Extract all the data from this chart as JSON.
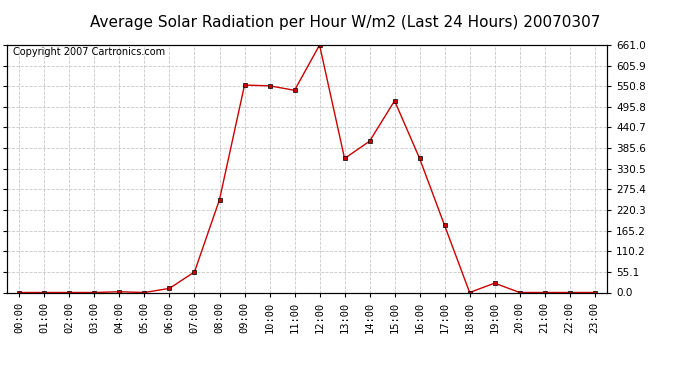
{
  "title": "Average Solar Radiation per Hour W/m2 (Last 24 Hours) 20070307",
  "copyright_text": "Copyright 2007 Cartronics.com",
  "hours": [
    "00:00",
    "01:00",
    "02:00",
    "03:00",
    "04:00",
    "05:00",
    "06:00",
    "07:00",
    "08:00",
    "09:00",
    "10:00",
    "11:00",
    "12:00",
    "13:00",
    "14:00",
    "15:00",
    "16:00",
    "17:00",
    "18:00",
    "19:00",
    "20:00",
    "21:00",
    "22:00",
    "23:00"
  ],
  "values": [
    0.0,
    0.0,
    0.0,
    0.0,
    2.0,
    0.0,
    11.0,
    55.0,
    248.0,
    554.0,
    552.0,
    540.0,
    661.0,
    358.0,
    404.0,
    512.0,
    358.0,
    179.0,
    0.0,
    25.0,
    0.0,
    0.0,
    0.0,
    0.0
  ],
  "line_color": "#cc0000",
  "marker_color": "#cc0000",
  "background_color": "#ffffff",
  "grid_color": "#c8c8c8",
  "ylim": [
    0.0,
    661.0
  ],
  "yticks": [
    0.0,
    55.1,
    110.2,
    165.2,
    220.3,
    275.4,
    330.5,
    385.6,
    440.7,
    495.8,
    550.8,
    605.9,
    661.0
  ],
  "title_fontsize": 11,
  "copyright_fontsize": 7,
  "tick_fontsize": 7.5,
  "fig_width": 6.9,
  "fig_height": 3.75
}
